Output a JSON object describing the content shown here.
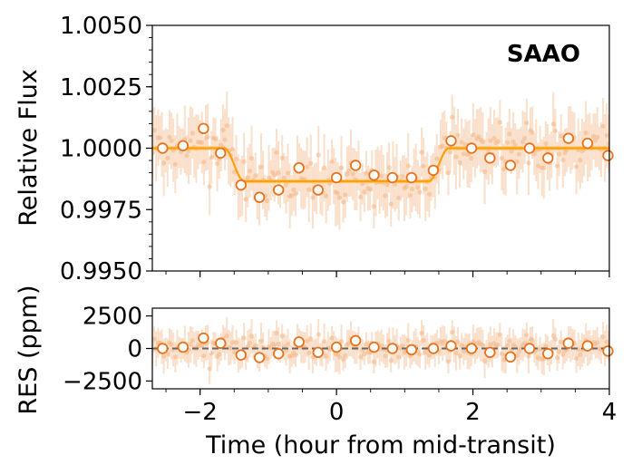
{
  "chart_data": [
    {
      "type": "scatter",
      "panel": "top",
      "title": "",
      "annotation": "SAAO",
      "xlabel": "",
      "ylabel": "Relative Flux",
      "xlim": [
        -2.7,
        4.0
      ],
      "ylim": [
        0.995,
        1.005
      ],
      "yticks": [
        0.995,
        0.9975,
        1.0,
        1.0025,
        1.005
      ],
      "ytick_labels": [
        "0.9950",
        "0.9975",
        "1.0000",
        "1.0025",
        "1.0050"
      ],
      "grid": false,
      "colors": {
        "raw": "#f5b98a",
        "binned": "#e8731c",
        "model": "#ff9f0a",
        "band": "#ffc15a"
      },
      "model": {
        "name": "transit model",
        "baseline": 1.0,
        "depth": 0.00135,
        "ingress_start": -1.65,
        "ingress_end": -1.35,
        "egress_start": 1.35,
        "egress_end": 1.65,
        "band_halfwidth": 8e-05
      },
      "binned": {
        "x": [
          -2.55,
          -2.25,
          -1.95,
          -1.7,
          -1.4,
          -1.13,
          -0.85,
          -0.55,
          -0.27,
          0.0,
          0.28,
          0.55,
          0.82,
          1.1,
          1.42,
          1.68,
          1.98,
          2.25,
          2.55,
          2.83,
          3.1,
          3.4,
          3.68,
          3.98
        ],
        "y": [
          1.0,
          1.0001,
          1.0008,
          0.9998,
          0.9985,
          0.998,
          0.9983,
          0.9992,
          0.9983,
          0.9988,
          0.9993,
          0.9989,
          0.9988,
          0.9988,
          0.9991,
          1.0003,
          1.0,
          0.9996,
          0.9993,
          1.0,
          0.9996,
          1.0004,
          1.0002,
          0.9997
        ],
        "yerr": [
          0.0002,
          0.0002,
          0.0002,
          0.0002,
          0.0002,
          0.0002,
          0.0002,
          0.0002,
          0.0002,
          0.0002,
          0.0002,
          0.0002,
          0.0002,
          0.0002,
          0.0002,
          0.0002,
          0.0002,
          0.0002,
          0.0002,
          0.0002,
          0.0002,
          0.0002,
          0.0002,
          0.0002
        ]
      }
    },
    {
      "type": "scatter",
      "panel": "bottom",
      "title": "",
      "xlabel": "Time (hour from mid-transit)",
      "ylabel": "RES (ppm)",
      "xlim": [
        -2.7,
        4.0
      ],
      "ylim": [
        -3100,
        3100
      ],
      "xticks": [
        -2,
        0,
        2,
        4
      ],
      "xtick_labels": [
        "−2",
        "0",
        "2",
        "4"
      ],
      "yticks": [
        -2500,
        0,
        2500
      ],
      "ytick_labels": [
        "−2500",
        "0",
        "2500"
      ],
      "zero_line": 0,
      "grid": false,
      "binned": {
        "x": [
          -2.55,
          -2.25,
          -1.95,
          -1.7,
          -1.4,
          -1.13,
          -0.85,
          -0.55,
          -0.27,
          0.0,
          0.28,
          0.55,
          0.82,
          1.1,
          1.42,
          1.68,
          1.98,
          2.25,
          2.55,
          2.83,
          3.1,
          3.4,
          3.68,
          3.98
        ],
        "y": [
          0,
          100,
          800,
          400,
          -500,
          -700,
          -400,
          500,
          -300,
          100,
          600,
          100,
          0,
          -100,
          0,
          200,
          0,
          -300,
          -650,
          0,
          -400,
          400,
          200,
          -200
        ],
        "yerr": [
          200,
          200,
          200,
          200,
          200,
          200,
          200,
          200,
          200,
          200,
          200,
          200,
          200,
          200,
          200,
          200,
          200,
          200,
          200,
          200,
          200,
          200,
          200,
          200
        ]
      }
    }
  ]
}
